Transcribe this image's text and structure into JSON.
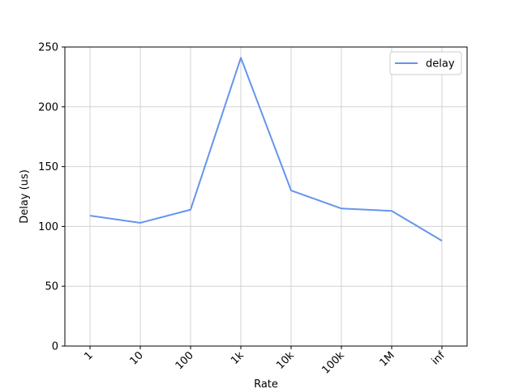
{
  "chart_data": {
    "type": "line",
    "categories": [
      "1",
      "10",
      "100",
      "1k",
      "10k",
      "100k",
      "1M",
      "inf"
    ],
    "series": [
      {
        "name": "delay",
        "values": [
          109,
          103,
          114,
          241,
          130,
          115,
          113,
          88
        ],
        "color": "#6495ED"
      }
    ],
    "xlabel": "Rate",
    "ylabel": "Delay (us)",
    "ylim": [
      0,
      250
    ],
    "yticks": [
      0,
      50,
      100,
      150,
      200,
      250
    ],
    "grid": true,
    "legend_position": "top-right"
  }
}
